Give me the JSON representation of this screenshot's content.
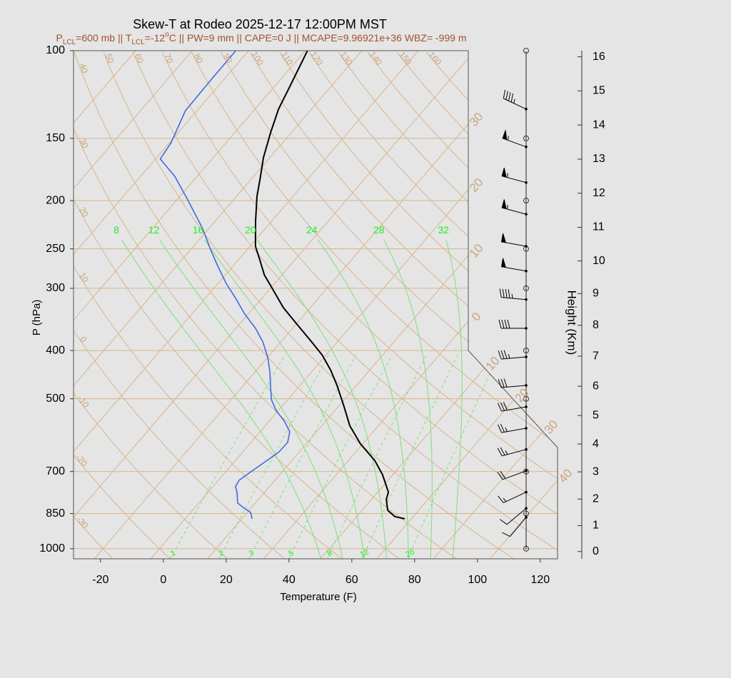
{
  "chart_data": {
    "type": "skew-t",
    "title": "Skew-T at Rodeo 2025-12-17 12:00PM MST",
    "subtitle_parts": [
      {
        "text": "P"
      },
      {
        "text": "LCL",
        "sub": true
      },
      {
        "text": "=600 mb || T"
      },
      {
        "text": "LCL",
        "sub": true
      },
      {
        "text": "=-12"
      },
      {
        "text": "o",
        "sup": true
      },
      {
        "text": "C || PW=9 mm || CAPE=0 J || MCAPE=9.96921e+36 WBZ= -999 m"
      }
    ],
    "subtitle_color": "#a0522d",
    "xlabel": "Temperature (F)",
    "ylabel": "P (hPa)",
    "xlim": [
      -28.6,
      125.5
    ],
    "xticks": [
      -20,
      0,
      20,
      40,
      60,
      80,
      100,
      120
    ],
    "ylim": [
      1048,
      100
    ],
    "yticks": [
      100,
      150,
      200,
      250,
      300,
      400,
      500,
      700,
      850,
      1000
    ],
    "log_y": true,
    "series": [
      {
        "color": "#000000",
        "x": [
          65.9,
          62.1,
          58.1,
          54.7,
          53.4,
          46.7,
          40.5,
          31.3,
          23.0,
          15.3,
          7.8,
          1.6,
          -5.1,
          -12.6,
          -21.8,
          -30.6,
          -40.1,
          -45.6,
          -51.2,
          -56.3,
          -63.1,
          -69.5,
          -73.5,
          -78.0,
          -82.6,
          -86.5,
          -89.1,
          -93.3
        ],
        "y": [
          871,
          862,
          837,
          796,
          770,
          710,
          666,
          616,
          567,
          515,
          470,
          438,
          409,
          383,
          354,
          328,
          298,
          282,
          263,
          247,
          220,
          196,
          180,
          164,
          146,
          131,
          118,
          100
        ]
      },
      {
        "color": "#4169e1",
        "x": [
          17.3,
          15.0,
          12.4,
          8.4,
          5.2,
          3.2,
          2.6,
          3.9,
          5.7,
          7.5,
          7.7,
          5.4,
          0.7,
          -4.7,
          -9.2,
          -13.4,
          -17.5,
          -22.1,
          -27.6,
          -33.8,
          -41.1,
          -48.4,
          -55.2,
          -63.1,
          -69.6,
          -78.2,
          -91.2,
          -101.0,
          -110.5,
          -111.5,
          -115.7,
          -116.0,
          -116.1
        ],
        "y": [
          871,
          845,
          832,
          810,
          770,
          751,
          729,
          703,
          671,
          641,
          612,
          582,
          554,
          528,
          502,
          470,
          440,
          412,
          385,
          361,
          338,
          314,
          294,
          270,
          251,
          227,
          198,
          179,
          165,
          153,
          132,
          116,
          100
        ]
      }
    ],
    "isotherms_c": {
      "values": [
        -100,
        -90,
        -80,
        -70,
        -60,
        -50,
        -40,
        -30,
        -20,
        -10,
        0,
        10,
        20,
        30,
        40
      ],
      "labels": [
        null,
        null,
        null,
        null,
        null,
        null,
        null,
        "30",
        "20",
        "10",
        "0",
        "10",
        "20",
        "30",
        "40"
      ]
    },
    "dry_adiabats_c": [
      -30,
      -20,
      -10,
      0,
      10,
      20,
      30,
      40,
      50,
      60,
      70,
      80,
      90,
      100,
      110,
      120,
      130,
      140,
      150,
      160
    ],
    "moist_adiabats_c": [
      8,
      12,
      16,
      20,
      24,
      28,
      32
    ],
    "mixing_ratios": [
      1,
      2,
      3,
      5,
      8,
      12,
      20
    ],
    "height_axis": {
      "label": "Height (Km)",
      "ticks": [
        0,
        1,
        2,
        3,
        4,
        5,
        6,
        7,
        8,
        9,
        10,
        11,
        12,
        13,
        14,
        15,
        16
      ]
    },
    "wind": {
      "pressure": [
        131,
        156,
        184,
        213,
        247,
        277,
        316,
        361,
        412,
        470,
        519,
        573,
        632,
        698,
        770,
        830,
        865
      ],
      "speed": [
        45,
        55,
        55,
        55,
        50,
        50,
        45,
        40,
        35,
        30,
        30,
        25,
        25,
        20,
        15,
        10,
        10
      ],
      "direction": [
        295,
        290,
        285,
        285,
        280,
        280,
        275,
        270,
        265,
        265,
        260,
        260,
        255,
        250,
        245,
        230,
        220
      ]
    }
  }
}
